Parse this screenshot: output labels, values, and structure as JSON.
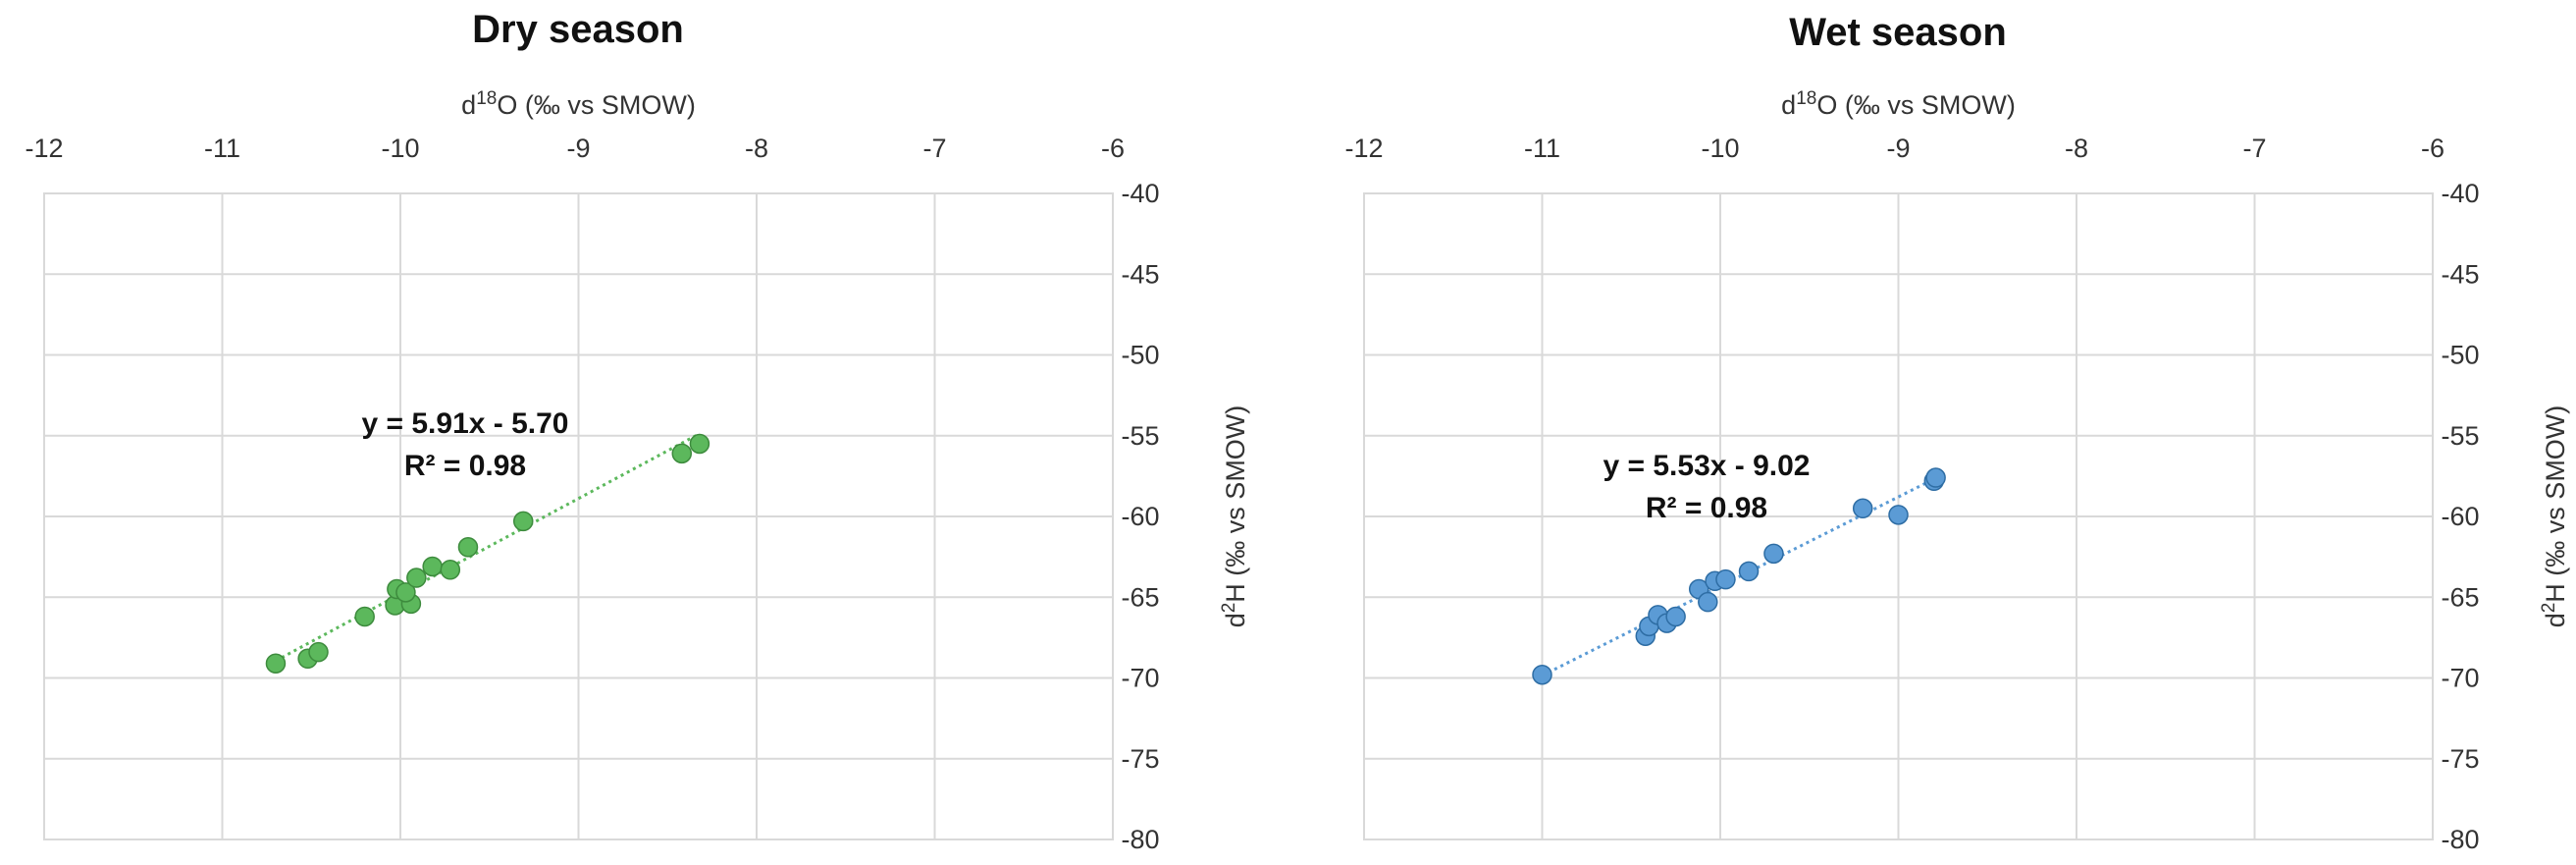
{
  "chart_data": [
    {
      "type": "scatter",
      "title": "Dry season",
      "xlabel": "d18O (‰ vs SMOW)",
      "xlabel_parts": {
        "pre": "d",
        "sup": "18",
        "post": "O (‰ vs SMOW)"
      },
      "ylabel": "d2H (‰ vs SMOW)",
      "ylabel_parts": {
        "pre": "d",
        "sup": "2",
        "post": "H (‰ vs SMOW)"
      },
      "xlim": [
        -12,
        -6
      ],
      "ylim": [
        -80,
        -40
      ],
      "x_ticks": [
        -12,
        -11,
        -10,
        -9,
        -8,
        -7,
        -6
      ],
      "y_ticks": [
        -40,
        -45,
        -50,
        -55,
        -60,
        -65,
        -70,
        -75,
        -80
      ],
      "grid": true,
      "point_color": "#5cb85c",
      "point_stroke": "#3d8b3d",
      "trend_color": "#5cb85c",
      "points": [
        {
          "x": -10.7,
          "y": -69.1
        },
        {
          "x": -10.52,
          "y": -68.8
        },
        {
          "x": -10.46,
          "y": -68.4
        },
        {
          "x": -10.2,
          "y": -66.2
        },
        {
          "x": -10.03,
          "y": -65.5
        },
        {
          "x": -9.94,
          "y": -65.4
        },
        {
          "x": -10.02,
          "y": -64.5
        },
        {
          "x": -9.97,
          "y": -64.7
        },
        {
          "x": -9.91,
          "y": -63.8
        },
        {
          "x": -9.82,
          "y": -63.1
        },
        {
          "x": -9.72,
          "y": -63.3
        },
        {
          "x": -9.62,
          "y": -61.9
        },
        {
          "x": -9.31,
          "y": -60.3
        },
        {
          "x": -8.42,
          "y": -56.1
        },
        {
          "x": -8.32,
          "y": -55.5
        }
      ],
      "trendline": {
        "x_start": -10.7,
        "x_end": -8.32,
        "slope": 5.91,
        "intercept": -5.7
      },
      "equation_line1": "y = 5.91x - 5.70",
      "equation_line2": "R² = 0.98"
    },
    {
      "type": "scatter",
      "title": "Wet season",
      "xlabel": "d18O (‰ vs SMOW)",
      "xlabel_parts": {
        "pre": "d",
        "sup": "18",
        "post": "O (‰ vs SMOW)"
      },
      "ylabel": "d2H (‰ vs SMOW)",
      "ylabel_parts": {
        "pre": "d",
        "sup": "2",
        "post": "H (‰ vs SMOW)"
      },
      "xlim": [
        -12,
        -6
      ],
      "ylim": [
        -80,
        -40
      ],
      "x_ticks": [
        -12,
        -11,
        -10,
        -9,
        -8,
        -7,
        -6
      ],
      "y_ticks": [
        -40,
        -45,
        -50,
        -55,
        -60,
        -65,
        -70,
        -75,
        -80
      ],
      "grid": true,
      "point_color": "#5b9bd5",
      "point_stroke": "#2e6da4",
      "trend_color": "#5b9bd5",
      "points": [
        {
          "x": -11.0,
          "y": -69.8
        },
        {
          "x": -10.42,
          "y": -67.4
        },
        {
          "x": -10.4,
          "y": -66.8
        },
        {
          "x": -10.35,
          "y": -66.1
        },
        {
          "x": -10.3,
          "y": -66.6
        },
        {
          "x": -10.25,
          "y": -66.2
        },
        {
          "x": -10.12,
          "y": -64.5
        },
        {
          "x": -10.07,
          "y": -65.3
        },
        {
          "x": -10.03,
          "y": -64.0
        },
        {
          "x": -9.97,
          "y": -63.9
        },
        {
          "x": -9.84,
          "y": -63.4
        },
        {
          "x": -9.7,
          "y": -62.3
        },
        {
          "x": -9.2,
          "y": -59.5
        },
        {
          "x": -9.0,
          "y": -59.9
        },
        {
          "x": -8.8,
          "y": -57.8
        },
        {
          "x": -8.79,
          "y": -57.6
        }
      ],
      "trendline": {
        "x_start": -11.0,
        "x_end": -8.79,
        "slope": 5.53,
        "intercept": -9.02
      },
      "equation_line1": "y = 5.53x - 9.02",
      "equation_line2": "R² = 0.98"
    }
  ]
}
